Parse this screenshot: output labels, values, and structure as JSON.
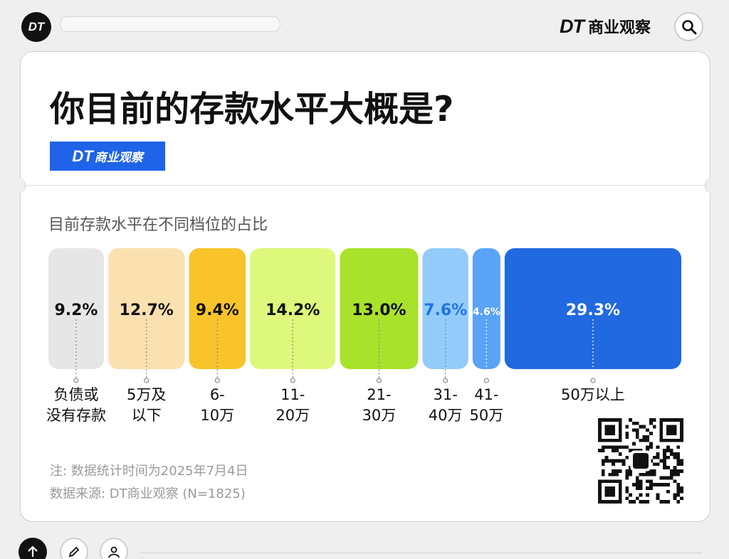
{
  "header": {
    "logo_text": "DT",
    "brand_dt": "DT",
    "brand_name": "商业观察",
    "search_icon": "search-icon"
  },
  "card": {
    "title": "你目前的存款水平大概是?",
    "badge_dt": "DT",
    "badge_name": "商业观察",
    "subtitle": "目前存款水平在不同档位的占比",
    "note_date": "注: 数据统计时间为2025年7月4日",
    "note_source": "数据来源: DT商业观察 (N=1825)"
  },
  "chart_data": {
    "type": "bar",
    "categories": [
      "负债或\n没有存款",
      "5万及\n以下",
      "6-\n10万",
      "11-\n20万",
      "21-\n30万",
      "31-\n40万",
      "41-\n50万",
      "50万以上"
    ],
    "values": [
      9.2,
      12.7,
      9.4,
      14.2,
      13.0,
      7.6,
      4.6,
      29.3
    ],
    "value_labels": [
      "9.2%",
      "12.7%",
      "9.4%",
      "14.2%",
      "13.0%",
      "7.6%",
      "4.6%",
      "29.3%"
    ],
    "colors": [
      "#e6e6e6",
      "#fbe0b0",
      "#f8c429",
      "#ddf87a",
      "#a9e22a",
      "#93cbfb",
      "#5aa3f7",
      "#2169e0"
    ],
    "label_colors": [
      "#111111",
      "#111111",
      "#111111",
      "#111111",
      "#111111",
      "#1f73e8",
      "#ffffff",
      "#ffffff"
    ],
    "title": "你目前的存款水平大概是?",
    "xlabel": "",
    "ylabel": "",
    "unit": "%"
  },
  "toolbar": {
    "icons": [
      "arrow-up-icon",
      "pencil-icon",
      "user-icon"
    ]
  }
}
